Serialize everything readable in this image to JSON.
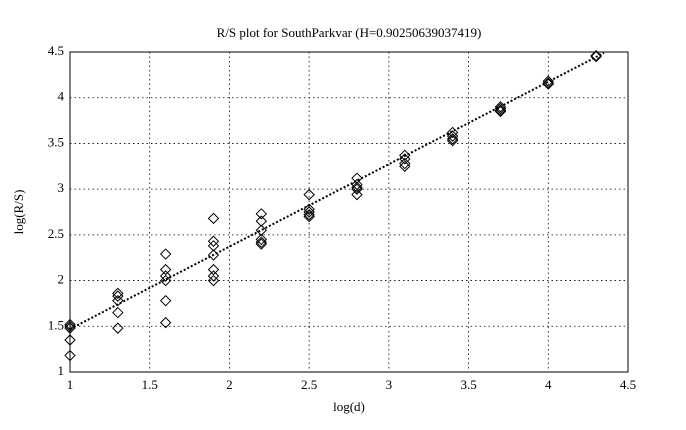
{
  "chart_data": {
    "type": "scatter",
    "title": "R/S plot for SouthParkvar (H=0.90250639037419)",
    "x_label": "log(d)",
    "y_label": "log(R/S)",
    "xlim": [
      1,
      4.5
    ],
    "ylim": [
      1,
      4.5
    ],
    "xticks": [
      1,
      1.5,
      2,
      2.5,
      3,
      3.5,
      4,
      4.5
    ],
    "yticks": [
      1,
      1.5,
      2,
      2.5,
      3,
      3.5,
      4,
      4.5
    ],
    "grid": true,
    "series": [
      {
        "marker": "diamond",
        "color": "#000000",
        "x": [
          1,
          1,
          1,
          1,
          1,
          1.3,
          1.3,
          1.3,
          1.3,
          1.3,
          1.6,
          1.6,
          1.6,
          1.6,
          1.6,
          1.6,
          1.9,
          1.9,
          1.9,
          1.9,
          1.9,
          1.9,
          1.9,
          2.2,
          2.2,
          2.2,
          2.2,
          2.2,
          2.2,
          2.5,
          2.5,
          2.5,
          2.5,
          2.5,
          2.8,
          2.8,
          2.8,
          2.8,
          2.8,
          3.1,
          3.1,
          3.1,
          3.1,
          3.4,
          3.4,
          3.4,
          3.4,
          3.7,
          3.7,
          3.7,
          3.7,
          4,
          4,
          4,
          4.3,
          4.3
        ],
        "values": [
          1.52,
          1.5,
          1.35,
          1.18,
          1.48,
          1.86,
          1.83,
          1.78,
          1.65,
          1.48,
          2.29,
          2.12,
          2.05,
          2,
          1.78,
          1.54,
          2.68,
          2.43,
          2.38,
          2.28,
          2.12,
          2.05,
          2,
          2.73,
          2.65,
          2.55,
          2.45,
          2.42,
          2.4,
          2.94,
          2.78,
          2.75,
          2.72,
          2.7,
          3.12,
          3.05,
          3.02,
          3,
          2.94,
          3.37,
          3.33,
          3.28,
          3.25,
          3.62,
          3.58,
          3.55,
          3.53,
          3.9,
          3.88,
          3.86,
          3.85,
          4.18,
          4.16,
          4.15,
          4.46,
          4.45
        ]
      },
      {
        "marker": "none",
        "line": "dotted",
        "color": "#000000",
        "x": [
          1,
          4.35
        ],
        "values": [
          1.47,
          4.49
        ]
      }
    ]
  }
}
